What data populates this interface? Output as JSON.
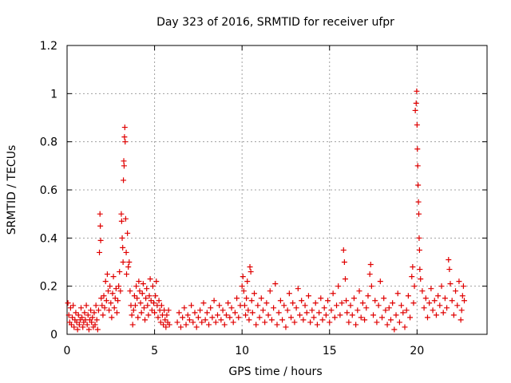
{
  "chart_data": {
    "type": "scatter",
    "title": "Day 323 of 2016, SRMTID for receiver ufpr",
    "xlabel": "GPS time / hours",
    "ylabel": "SRMTID / TECUs",
    "xlim": [
      0,
      24
    ],
    "ylim": [
      0,
      1.2
    ],
    "xticks": [
      0,
      5,
      10,
      15,
      20
    ],
    "xtick_labels": [
      "0",
      "5",
      "10",
      "15",
      "20"
    ],
    "yticks": [
      0,
      0.2,
      0.4,
      0.6,
      0.8,
      1.0,
      1.2
    ],
    "ytick_labels": [
      "0",
      "0.2",
      "0.4",
      "0.6",
      "0.8",
      "1",
      "1.2"
    ],
    "grid": true,
    "marker": "+",
    "color": "#e00000",
    "series": [
      {
        "name": "SRMTID",
        "points": [
          [
            0.05,
            0.13
          ],
          [
            0.1,
            0.08
          ],
          [
            0.15,
            0.05
          ],
          [
            0.2,
            0.11
          ],
          [
            0.25,
            0.04
          ],
          [
            0.3,
            0.07
          ],
          [
            0.35,
            0.12
          ],
          [
            0.4,
            0.03
          ],
          [
            0.45,
            0.06
          ],
          [
            0.5,
            0.09
          ],
          [
            0.55,
            0.05
          ],
          [
            0.6,
            0.02
          ],
          [
            0.65,
            0.08
          ],
          [
            0.7,
            0.04
          ],
          [
            0.75,
            0.06
          ],
          [
            0.8,
            0.11
          ],
          [
            0.85,
            0.07
          ],
          [
            0.9,
            0.03
          ],
          [
            0.95,
            0.05
          ],
          [
            1.0,
            0.09
          ],
          [
            1.05,
            0.06
          ],
          [
            1.1,
            0.12
          ],
          [
            1.15,
            0.04
          ],
          [
            1.2,
            0.08
          ],
          [
            1.25,
            0.02
          ],
          [
            1.3,
            0.06
          ],
          [
            1.35,
            0.1
          ],
          [
            1.4,
            0.05
          ],
          [
            1.45,
            0.07
          ],
          [
            1.5,
            0.03
          ],
          [
            1.55,
            0.09
          ],
          [
            1.6,
            0.04
          ],
          [
            1.65,
            0.12
          ],
          [
            1.7,
            0.06
          ],
          [
            1.75,
            0.02
          ],
          [
            1.8,
            0.1
          ],
          [
            1.85,
            0.34
          ],
          [
            1.88,
            0.5
          ],
          [
            1.9,
            0.45
          ],
          [
            1.92,
            0.39
          ],
          [
            1.95,
            0.15
          ],
          [
            2.0,
            0.12
          ],
          [
            2.05,
            0.08
          ],
          [
            2.1,
            0.16
          ],
          [
            2.15,
            0.11
          ],
          [
            2.2,
            0.22
          ],
          [
            2.25,
            0.14
          ],
          [
            2.3,
            0.25
          ],
          [
            2.35,
            0.18
          ],
          [
            2.4,
            0.1
          ],
          [
            2.45,
            0.2
          ],
          [
            2.5,
            0.13
          ],
          [
            2.55,
            0.07
          ],
          [
            2.6,
            0.17
          ],
          [
            2.65,
            0.24
          ],
          [
            2.7,
            0.11
          ],
          [
            2.75,
            0.15
          ],
          [
            2.8,
            0.19
          ],
          [
            2.85,
            0.09
          ],
          [
            2.9,
            0.14
          ],
          [
            2.95,
            0.2
          ],
          [
            3.0,
            0.26
          ],
          [
            3.05,
            0.18
          ],
          [
            3.1,
            0.5
          ],
          [
            3.12,
            0.47
          ],
          [
            3.15,
            0.4
          ],
          [
            3.18,
            0.36
          ],
          [
            3.2,
            0.3
          ],
          [
            3.22,
            0.64
          ],
          [
            3.24,
            0.72
          ],
          [
            3.26,
            0.7
          ],
          [
            3.28,
            0.82
          ],
          [
            3.3,
            0.86
          ],
          [
            3.32,
            0.8
          ],
          [
            3.35,
            0.48
          ],
          [
            3.38,
            0.34
          ],
          [
            3.4,
            0.25
          ],
          [
            3.45,
            0.42
          ],
          [
            3.5,
            0.28
          ],
          [
            3.55,
            0.3
          ],
          [
            3.6,
            0.18
          ],
          [
            3.65,
            0.12
          ],
          [
            3.7,
            0.08
          ],
          [
            3.75,
            0.04
          ],
          [
            3.8,
            0.1
          ],
          [
            3.85,
            0.16
          ],
          [
            3.9,
            0.12
          ],
          [
            3.95,
            0.2
          ],
          [
            4.0,
            0.15
          ],
          [
            4.05,
            0.07
          ],
          [
            4.1,
            0.22
          ],
          [
            4.15,
            0.18
          ],
          [
            4.2,
            0.13
          ],
          [
            4.25,
            0.09
          ],
          [
            4.3,
            0.17
          ],
          [
            4.35,
            0.21
          ],
          [
            4.4,
            0.11
          ],
          [
            4.45,
            0.06
          ],
          [
            4.5,
            0.15
          ],
          [
            4.55,
            0.19
          ],
          [
            4.6,
            0.12
          ],
          [
            4.65,
            0.08
          ],
          [
            4.7,
            0.16
          ],
          [
            4.75,
            0.23
          ],
          [
            4.8,
            0.14
          ],
          [
            4.85,
            0.1
          ],
          [
            4.9,
            0.2
          ],
          [
            4.95,
            0.13
          ],
          [
            5.0,
            0.09
          ],
          [
            5.05,
            0.16
          ],
          [
            5.1,
            0.22
          ],
          [
            5.15,
            0.12
          ],
          [
            5.2,
            0.07
          ],
          [
            5.25,
            0.14
          ],
          [
            5.3,
            0.1
          ],
          [
            5.35,
            0.05
          ],
          [
            5.4,
            0.12
          ],
          [
            5.45,
            0.08
          ],
          [
            5.5,
            0.04
          ],
          [
            5.55,
            0.1
          ],
          [
            5.6,
            0.06
          ],
          [
            5.65,
            0.03
          ],
          [
            5.7,
            0.08
          ],
          [
            5.75,
            0.05
          ],
          [
            5.8,
            0.1
          ],
          [
            5.85,
            0.04
          ],
          [
            6.3,
            0.05
          ],
          [
            6.4,
            0.09
          ],
          [
            6.5,
            0.03
          ],
          [
            6.6,
            0.07
          ],
          [
            6.7,
            0.11
          ],
          [
            6.8,
            0.04
          ],
          [
            6.9,
            0.08
          ],
          [
            7.0,
            0.06
          ],
          [
            7.1,
            0.12
          ],
          [
            7.2,
            0.05
          ],
          [
            7.3,
            0.09
          ],
          [
            7.4,
            0.03
          ],
          [
            7.5,
            0.07
          ],
          [
            7.6,
            0.1
          ],
          [
            7.7,
            0.05
          ],
          [
            7.8,
            0.13
          ],
          [
            7.9,
            0.06
          ],
          [
            8.0,
            0.09
          ],
          [
            8.1,
            0.04
          ],
          [
            8.2,
            0.11
          ],
          [
            8.3,
            0.07
          ],
          [
            8.4,
            0.14
          ],
          [
            8.5,
            0.05
          ],
          [
            8.6,
            0.08
          ],
          [
            8.7,
            0.12
          ],
          [
            8.8,
            0.06
          ],
          [
            8.9,
            0.1
          ],
          [
            9.0,
            0.04
          ],
          [
            9.1,
            0.08
          ],
          [
            9.2,
            0.13
          ],
          [
            9.3,
            0.07
          ],
          [
            9.4,
            0.11
          ],
          [
            9.5,
            0.05
          ],
          [
            9.6,
            0.09
          ],
          [
            9.7,
            0.15
          ],
          [
            9.8,
            0.07
          ],
          [
            9.9,
            0.12
          ],
          [
            10.0,
            0.2
          ],
          [
            10.05,
            0.24
          ],
          [
            10.1,
            0.18
          ],
          [
            10.15,
            0.12
          ],
          [
            10.2,
            0.08
          ],
          [
            10.25,
            0.15
          ],
          [
            10.3,
            0.22
          ],
          [
            10.35,
            0.1
          ],
          [
            10.4,
            0.06
          ],
          [
            10.45,
            0.28
          ],
          [
            10.5,
            0.26
          ],
          [
            10.55,
            0.14
          ],
          [
            10.6,
            0.09
          ],
          [
            10.7,
            0.17
          ],
          [
            10.8,
            0.04
          ],
          [
            10.9,
            0.12
          ],
          [
            11.0,
            0.07
          ],
          [
            11.1,
            0.15
          ],
          [
            11.2,
            0.1
          ],
          [
            11.3,
            0.05
          ],
          [
            11.4,
            0.13
          ],
          [
            11.5,
            0.08
          ],
          [
            11.6,
            0.18
          ],
          [
            11.7,
            0.06
          ],
          [
            11.8,
            0.11
          ],
          [
            11.9,
            0.21
          ],
          [
            12.0,
            0.04
          ],
          [
            12.1,
            0.09
          ],
          [
            12.2,
            0.14
          ],
          [
            12.3,
            0.06
          ],
          [
            12.4,
            0.12
          ],
          [
            12.5,
            0.03
          ],
          [
            12.6,
            0.1
          ],
          [
            12.7,
            0.17
          ],
          [
            12.8,
            0.07
          ],
          [
            12.9,
            0.13
          ],
          [
            13.0,
            0.05
          ],
          [
            13.1,
            0.11
          ],
          [
            13.2,
            0.19
          ],
          [
            13.3,
            0.08
          ],
          [
            13.4,
            0.14
          ],
          [
            13.5,
            0.06
          ],
          [
            13.6,
            0.12
          ],
          [
            13.7,
            0.09
          ],
          [
            13.8,
            0.16
          ],
          [
            13.9,
            0.05
          ],
          [
            14.0,
            0.1
          ],
          [
            14.1,
            0.07
          ],
          [
            14.2,
            0.13
          ],
          [
            14.3,
            0.04
          ],
          [
            14.4,
            0.09
          ],
          [
            14.5,
            0.15
          ],
          [
            14.6,
            0.06
          ],
          [
            14.7,
            0.11
          ],
          [
            14.8,
            0.08
          ],
          [
            14.9,
            0.14
          ],
          [
            15.0,
            0.05
          ],
          [
            15.1,
            0.1
          ],
          [
            15.2,
            0.17
          ],
          [
            15.3,
            0.07
          ],
          [
            15.4,
            0.12
          ],
          [
            15.5,
            0.2
          ],
          [
            15.6,
            0.08
          ],
          [
            15.7,
            0.13
          ],
          [
            15.8,
            0.35
          ],
          [
            15.85,
            0.3
          ],
          [
            15.9,
            0.23
          ],
          [
            15.95,
            0.14
          ],
          [
            16.0,
            0.09
          ],
          [
            16.1,
            0.05
          ],
          [
            16.2,
            0.12
          ],
          [
            16.3,
            0.08
          ],
          [
            16.4,
            0.15
          ],
          [
            16.5,
            0.04
          ],
          [
            16.6,
            0.1
          ],
          [
            16.7,
            0.18
          ],
          [
            16.8,
            0.07
          ],
          [
            16.9,
            0.13
          ],
          [
            17.0,
            0.06
          ],
          [
            17.1,
            0.11
          ],
          [
            17.2,
            0.16
          ],
          [
            17.3,
            0.25
          ],
          [
            17.35,
            0.29
          ],
          [
            17.4,
            0.2
          ],
          [
            17.5,
            0.08
          ],
          [
            17.6,
            0.14
          ],
          [
            17.7,
            0.05
          ],
          [
            17.8,
            0.12
          ],
          [
            17.9,
            0.22
          ],
          [
            18.0,
            0.07
          ],
          [
            18.1,
            0.15
          ],
          [
            18.2,
            0.1
          ],
          [
            18.3,
            0.04
          ],
          [
            18.4,
            0.11
          ],
          [
            18.5,
            0.06
          ],
          [
            18.6,
            0.13
          ],
          [
            18.7,
            0.02
          ],
          [
            18.8,
            0.08
          ],
          [
            18.9,
            0.17
          ],
          [
            19.0,
            0.05
          ],
          [
            19.1,
            0.12
          ],
          [
            19.2,
            0.09
          ],
          [
            19.3,
            0.03
          ],
          [
            19.4,
            0.1
          ],
          [
            19.5,
            0.16
          ],
          [
            19.6,
            0.07
          ],
          [
            19.7,
            0.24
          ],
          [
            19.75,
            0.28
          ],
          [
            19.8,
            0.13
          ],
          [
            19.85,
            0.2
          ],
          [
            19.9,
            0.93
          ],
          [
            19.95,
            0.96
          ],
          [
            19.98,
            1.01
          ],
          [
            20.0,
            0.87
          ],
          [
            20.02,
            0.77
          ],
          [
            20.04,
            0.7
          ],
          [
            20.06,
            0.62
          ],
          [
            20.08,
            0.55
          ],
          [
            20.1,
            0.5
          ],
          [
            20.12,
            0.4
          ],
          [
            20.14,
            0.35
          ],
          [
            20.16,
            0.27
          ],
          [
            20.2,
            0.23
          ],
          [
            20.3,
            0.18
          ],
          [
            20.4,
            0.11
          ],
          [
            20.5,
            0.15
          ],
          [
            20.6,
            0.07
          ],
          [
            20.7,
            0.13
          ],
          [
            20.8,
            0.19
          ],
          [
            20.9,
            0.1
          ],
          [
            21.0,
            0.14
          ],
          [
            21.1,
            0.08
          ],
          [
            21.2,
            0.16
          ],
          [
            21.3,
            0.12
          ],
          [
            21.4,
            0.2
          ],
          [
            21.5,
            0.09
          ],
          [
            21.6,
            0.15
          ],
          [
            21.7,
            0.11
          ],
          [
            21.8,
            0.31
          ],
          [
            21.85,
            0.27
          ],
          [
            21.9,
            0.21
          ],
          [
            22.0,
            0.14
          ],
          [
            22.1,
            0.08
          ],
          [
            22.2,
            0.18
          ],
          [
            22.3,
            0.12
          ],
          [
            22.4,
            0.22
          ],
          [
            22.5,
            0.06
          ],
          [
            22.55,
            0.1
          ],
          [
            22.6,
            0.16
          ],
          [
            22.65,
            0.2
          ],
          [
            22.7,
            0.14
          ]
        ]
      }
    ]
  }
}
